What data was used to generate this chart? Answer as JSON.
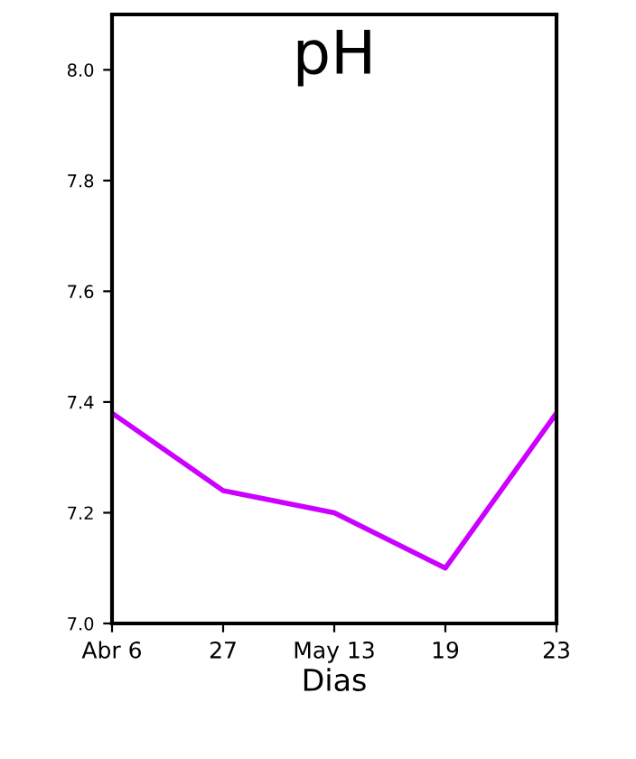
{
  "chart_data": {
    "type": "line",
    "title": "pH",
    "xlabel": "Dias",
    "categories": [
      "Abr 6",
      "27",
      "May 13",
      "19",
      "23"
    ],
    "series": [
      {
        "color": "#cc00ff",
        "values": [
          7.38,
          7.24,
          7.2,
          7.1,
          7.38
        ]
      }
    ],
    "ylim": [
      7.0,
      8.1
    ],
    "yticks": [
      {
        "value": 7.0,
        "label": "7.0"
      },
      {
        "value": 7.2,
        "label": "7.2"
      },
      {
        "value": 7.4,
        "label": "7.4"
      },
      {
        "value": 7.6,
        "label": "7.6"
      },
      {
        "value": 7.8,
        "label": "7.8"
      },
      {
        "value": 8.0,
        "label": "8.0"
      }
    ],
    "grid": false,
    "legend": false,
    "marker": "none",
    "line_style": "solid"
  }
}
